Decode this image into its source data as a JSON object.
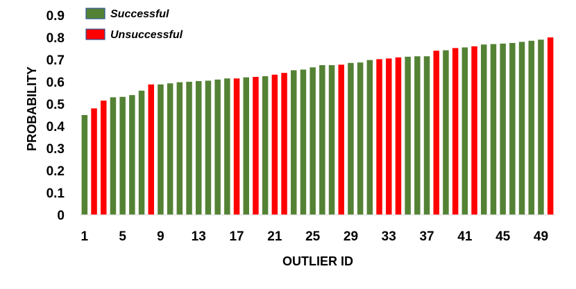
{
  "chart_data": {
    "type": "bar",
    "xlabel": "OUTLIER ID",
    "ylabel": "PROBABILITY",
    "ylim": [
      0,
      0.9
    ],
    "y_ticks": [
      "0",
      "0.1",
      "0.2",
      "0.3",
      "0.4",
      "0.5",
      "0.6",
      "0.7",
      "0.8",
      "0.9"
    ],
    "x_tick_labels": [
      "1",
      "5",
      "9",
      "13",
      "17",
      "21",
      "25",
      "29",
      "33",
      "37",
      "41",
      "45",
      "49"
    ],
    "grid": false,
    "legend": {
      "placement": "top-left",
      "entries": [
        {
          "label": "Successful",
          "color": "#548235",
          "outcome": "successful"
        },
        {
          "label": "Unsuccessful",
          "color": "#ff0000",
          "outcome": "unsuccessful"
        }
      ]
    },
    "colors": {
      "successful": "#548235",
      "unsuccessful": "#ff0000"
    },
    "categories": [
      "1",
      "2",
      "3",
      "4",
      "5",
      "6",
      "7",
      "8",
      "9",
      "10",
      "11",
      "12",
      "13",
      "14",
      "15",
      "16",
      "17",
      "18",
      "19",
      "20",
      "21",
      "22",
      "23",
      "24",
      "25",
      "26",
      "27",
      "28",
      "29",
      "30",
      "31",
      "32",
      "33",
      "34",
      "35",
      "36",
      "37",
      "38",
      "39",
      "40",
      "41",
      "42",
      "43",
      "44",
      "45",
      "46",
      "47",
      "48",
      "49",
      "50"
    ],
    "values": [
      0.45,
      0.48,
      0.515,
      0.53,
      0.532,
      0.54,
      0.56,
      0.588,
      0.588,
      0.593,
      0.598,
      0.6,
      0.603,
      0.605,
      0.61,
      0.615,
      0.615,
      0.62,
      0.622,
      0.625,
      0.632,
      0.64,
      0.652,
      0.655,
      0.665,
      0.675,
      0.675,
      0.677,
      0.685,
      0.687,
      0.698,
      0.702,
      0.705,
      0.71,
      0.713,
      0.715,
      0.715,
      0.74,
      0.742,
      0.752,
      0.755,
      0.76,
      0.768,
      0.77,
      0.772,
      0.775,
      0.78,
      0.785,
      0.79,
      0.8
    ],
    "outcomes": [
      "successful",
      "unsuccessful",
      "unsuccessful",
      "successful",
      "successful",
      "successful",
      "successful",
      "unsuccessful",
      "successful",
      "successful",
      "successful",
      "successful",
      "successful",
      "successful",
      "successful",
      "successful",
      "unsuccessful",
      "successful",
      "unsuccessful",
      "successful",
      "unsuccessful",
      "unsuccessful",
      "successful",
      "successful",
      "successful",
      "successful",
      "successful",
      "unsuccessful",
      "successful",
      "successful",
      "successful",
      "unsuccessful",
      "unsuccessful",
      "unsuccessful",
      "successful",
      "successful",
      "successful",
      "unsuccessful",
      "successful",
      "unsuccessful",
      "successful",
      "unsuccessful",
      "successful",
      "successful",
      "successful",
      "successful",
      "successful",
      "successful",
      "successful",
      "unsuccessful"
    ]
  }
}
